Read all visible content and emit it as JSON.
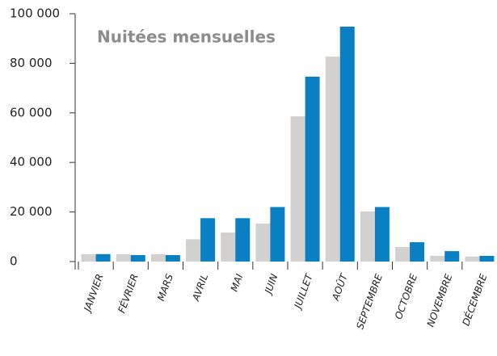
{
  "chart_data": {
    "type": "bar",
    "title": "Nuitées mensuelles",
    "categories": [
      "JANVIER",
      "FÉVRIER",
      "MARS",
      "AVRIL",
      "MAI",
      "JUIN",
      "JUILLET",
      "AOÛT",
      "SEPTEMBRE",
      "OCTOBRE",
      "NOVEMBRE",
      "DÉCEMBRE"
    ],
    "series": [
      {
        "color": "#d3d0d0",
        "values": [
          3000,
          3000,
          3000,
          9000,
          11700,
          15300,
          58600,
          82700,
          20200,
          5900,
          2300,
          2000
        ]
      },
      {
        "color": "#0a7fc4",
        "values": [
          3000,
          2600,
          2600,
          17500,
          17500,
          22000,
          74600,
          94800,
          22000,
          7800,
          4200,
          2300
        ]
      }
    ],
    "ylim": [
      0,
      100000
    ],
    "yticks": [
      0,
      {
        "value": 20000,
        "label": "20 000"
      },
      {
        "value": 40000,
        "label": "40 000"
      },
      {
        "value": 60000,
        "label": "60 000"
      },
      {
        "value": 80000,
        "label": "80 000"
      },
      {
        "value": 100000,
        "label": "100 000"
      }
    ]
  }
}
